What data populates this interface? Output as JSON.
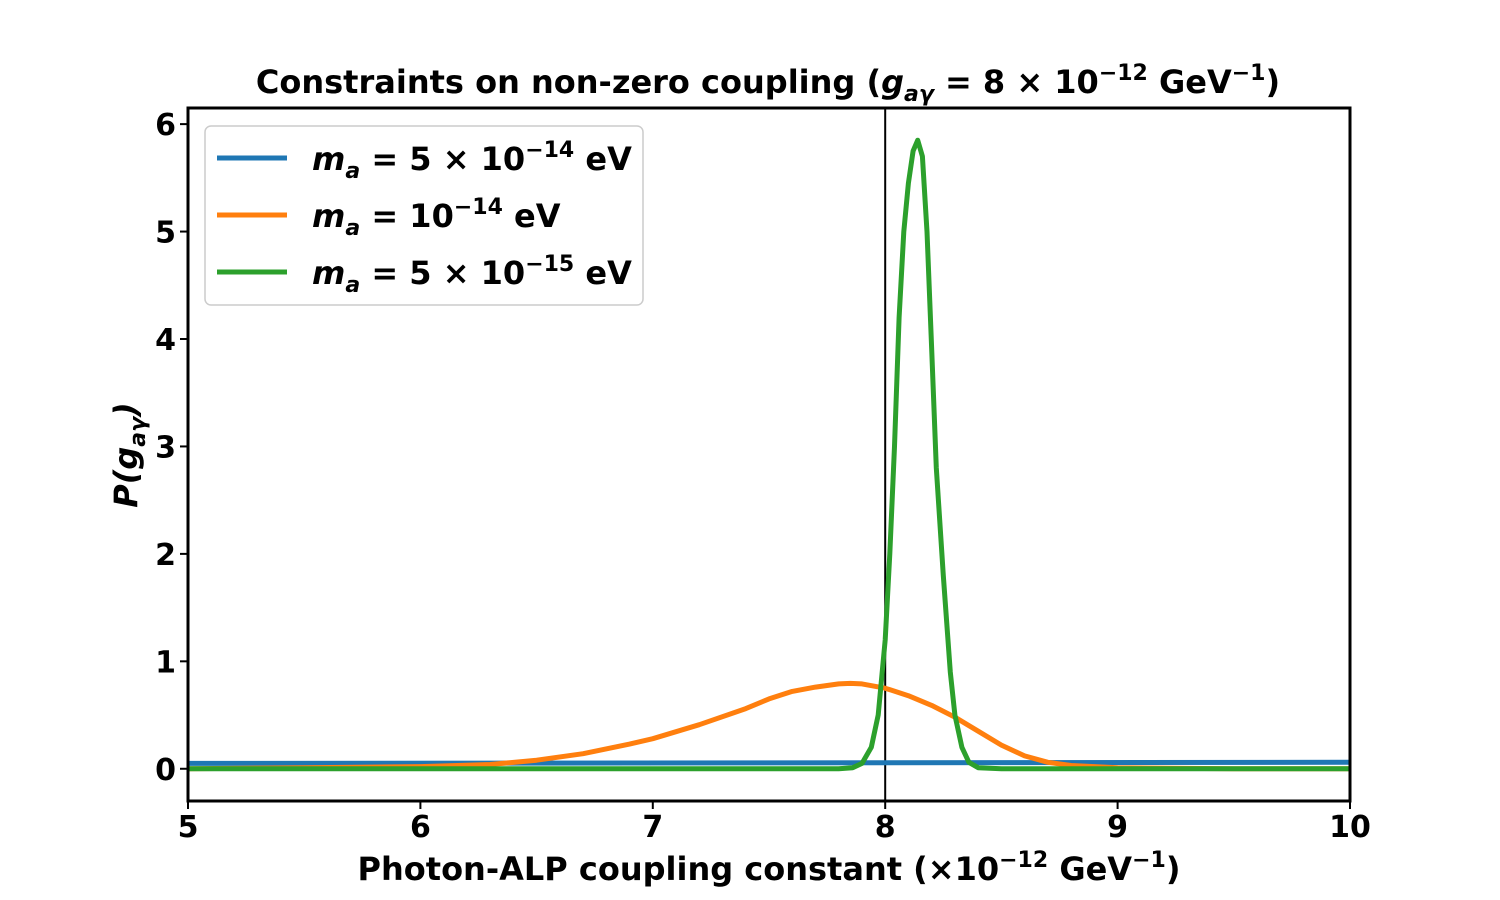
{
  "chart_data": {
    "type": "line",
    "title": {
      "pre": "Constraints on non-zero coupling (",
      "g": "g",
      "g_sub": "aγ",
      "eq": " = 8 × 10",
      "exp": "−12",
      "unit": " GeV",
      "unit_exp": "−1",
      "post": ")"
    },
    "xlabel": {
      "pre": "Photon-ALP coupling constant (×10",
      "exp": "−12",
      "unit": " GeV",
      "unit_exp": "−1",
      "post": ")"
    },
    "ylabel": {
      "pre": "P(",
      "g": "g",
      "g_sub": "aγ",
      "post": ")"
    },
    "xlim": [
      5,
      10
    ],
    "ylim": [
      -0.3,
      6.15
    ],
    "xticks": [
      5,
      6,
      7,
      8,
      9,
      10
    ],
    "yticks": [
      0,
      1,
      2,
      3,
      4,
      5,
      6
    ],
    "grid": false,
    "legend_position": "top-left",
    "vline_x": 8,
    "series": [
      {
        "legend": {
          "m": "m",
          "m_sub": "a",
          "eq": " = 5 × 10",
          "exp": "−14",
          "unit": " eV"
        },
        "color": "#1f77b4",
        "x": [
          5,
          10
        ],
        "y": [
          0.05,
          0.06
        ]
      },
      {
        "legend": {
          "m": "m",
          "m_sub": "a",
          "eq": " = 10",
          "exp": "−14",
          "unit": " eV"
        },
        "color": "#ff7f0e",
        "x": [
          5.0,
          5.5,
          6.0,
          6.3,
          6.5,
          6.7,
          6.9,
          7.0,
          7.2,
          7.4,
          7.5,
          7.6,
          7.7,
          7.8,
          7.85,
          7.9,
          8.0,
          8.1,
          8.2,
          8.3,
          8.4,
          8.5,
          8.6,
          8.7,
          8.8,
          9.0,
          9.5,
          10.0
        ],
        "y": [
          0.0,
          0.01,
          0.02,
          0.04,
          0.08,
          0.14,
          0.23,
          0.28,
          0.41,
          0.56,
          0.65,
          0.72,
          0.76,
          0.79,
          0.795,
          0.79,
          0.75,
          0.68,
          0.59,
          0.48,
          0.35,
          0.22,
          0.12,
          0.06,
          0.03,
          0.01,
          0.0,
          0.0
        ]
      },
      {
        "legend": {
          "m": "m",
          "m_sub": "a",
          "eq": " = 5 × 10",
          "exp": "−15",
          "unit": " eV"
        },
        "color": "#2ca02c",
        "x": [
          5.0,
          7.8,
          7.86,
          7.9,
          7.94,
          7.97,
          8.0,
          8.02,
          8.04,
          8.06,
          8.08,
          8.1,
          8.12,
          8.14,
          8.16,
          8.18,
          8.2,
          8.22,
          8.25,
          8.28,
          8.3,
          8.33,
          8.36,
          8.4,
          8.5,
          10.0
        ],
        "y": [
          0.0,
          0.0,
          0.01,
          0.05,
          0.2,
          0.5,
          1.2,
          2.0,
          3.0,
          4.2,
          5.0,
          5.45,
          5.75,
          5.85,
          5.7,
          5.0,
          3.9,
          2.8,
          1.8,
          0.9,
          0.5,
          0.2,
          0.06,
          0.01,
          0.0,
          0.0
        ]
      }
    ]
  }
}
